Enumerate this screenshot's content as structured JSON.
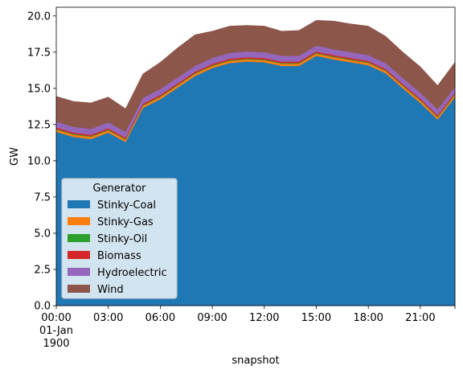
{
  "chart_data": {
    "type": "area",
    "stacked": true,
    "xlabel": "snapshot",
    "ylabel": "GW",
    "x_start_label_lines": [
      "00:00",
      "01-Jan",
      "1900"
    ],
    "x_tick_labels": [
      "03:00",
      "06:00",
      "09:00",
      "12:00",
      "15:00",
      "18:00",
      "21:00"
    ],
    "y_tick_labels": [
      "0.0",
      "2.5",
      "5.0",
      "7.5",
      "10.0",
      "12.5",
      "15.0",
      "17.5",
      "20.0"
    ],
    "x": [
      "00:00",
      "01:00",
      "02:00",
      "03:00",
      "04:00",
      "05:00",
      "06:00",
      "07:00",
      "08:00",
      "09:00",
      "10:00",
      "11:00",
      "12:00",
      "13:00",
      "14:00",
      "15:00",
      "16:00",
      "17:00",
      "18:00",
      "19:00",
      "20:00",
      "21:00",
      "22:00",
      "23:00"
    ],
    "xlim": [
      "00:00",
      "23:00"
    ],
    "ylim": [
      0,
      20.6
    ],
    "legend": {
      "title": "Generator",
      "position": "lower-left"
    },
    "series": [
      {
        "name": "Stinky-Coal",
        "color": "#1f77b4",
        "values": [
          12.0,
          11.65,
          11.5,
          11.95,
          11.3,
          13.65,
          14.25,
          15.05,
          15.85,
          16.4,
          16.75,
          16.85,
          16.8,
          16.55,
          16.55,
          17.25,
          17.0,
          16.8,
          16.6,
          16.05,
          15.0,
          14.0,
          12.85,
          14.4
        ]
      },
      {
        "name": "Stinky-Gas",
        "color": "#ff7f0e",
        "values": [
          0.15,
          0.15,
          0.15,
          0.15,
          0.15,
          0.15,
          0.15,
          0.15,
          0.15,
          0.15,
          0.15,
          0.15,
          0.15,
          0.15,
          0.15,
          0.15,
          0.15,
          0.15,
          0.15,
          0.15,
          0.15,
          0.15,
          0.15,
          0.15
        ]
      },
      {
        "name": "Stinky-Oil",
        "color": "#2ca02c",
        "values": [
          0.05,
          0.05,
          0.05,
          0.05,
          0.05,
          0.05,
          0.05,
          0.05,
          0.05,
          0.05,
          0.05,
          0.05,
          0.05,
          0.05,
          0.05,
          0.05,
          0.05,
          0.05,
          0.05,
          0.05,
          0.05,
          0.05,
          0.05,
          0.05
        ]
      },
      {
        "name": "Biomass",
        "color": "#d62728",
        "values": [
          0.1,
          0.1,
          0.1,
          0.1,
          0.1,
          0.1,
          0.1,
          0.1,
          0.1,
          0.1,
          0.1,
          0.1,
          0.1,
          0.1,
          0.1,
          0.1,
          0.1,
          0.1,
          0.1,
          0.1,
          0.1,
          0.1,
          0.1,
          0.1
        ]
      },
      {
        "name": "Hydroelectric",
        "color": "#9467bd",
        "values": [
          0.4,
          0.4,
          0.4,
          0.4,
          0.4,
          0.4,
          0.4,
          0.4,
          0.4,
          0.4,
          0.4,
          0.4,
          0.4,
          0.4,
          0.4,
          0.4,
          0.4,
          0.4,
          0.4,
          0.4,
          0.4,
          0.4,
          0.4,
          0.4
        ]
      },
      {
        "name": "Wind",
        "color": "#8c564b",
        "values": [
          1.75,
          1.75,
          1.8,
          1.75,
          1.6,
          1.65,
          1.85,
          2.05,
          2.15,
          1.85,
          1.85,
          1.8,
          1.8,
          1.7,
          1.75,
          1.75,
          1.95,
          1.95,
          2.0,
          1.85,
          1.8,
          1.8,
          1.65,
          1.7
        ]
      }
    ]
  }
}
